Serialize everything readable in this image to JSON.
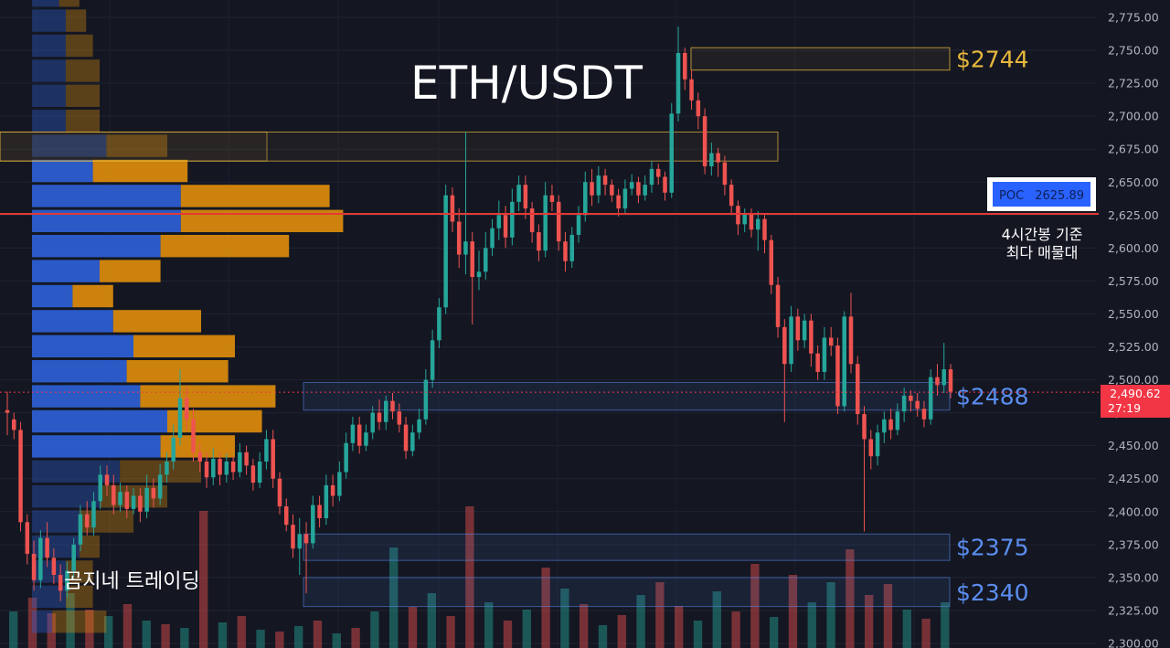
{
  "chart_data": {
    "type": "candlestick",
    "title": "ETH/USDT",
    "watermark": "곰지네 트레이딩",
    "y_ticks": [
      "2,775.00",
      "2,750.00",
      "2,725.00",
      "2,700.00",
      "2,675.00",
      "2,650.00",
      "2,625.00",
      "2,600.00",
      "2,575.00",
      "2,550.00",
      "2,525.00",
      "2,500.00",
      "2,475.00",
      "2,450.00",
      "2,425.00",
      "2,400.00",
      "2,375.00",
      "2,350.00",
      "2,325.00",
      "2,300.00"
    ],
    "ylim": [
      2300,
      2775
    ],
    "current_price": {
      "value": "2,490.62",
      "countdown": "27:19",
      "level": 2490.62
    },
    "poc": {
      "label": "POC",
      "value": "2625.89",
      "level": 2625.89,
      "note_line1": "4시간봉 기준",
      "note_line2": "최다 매물대"
    },
    "zones": [
      {
        "label": "$2744",
        "top": 2752,
        "bottom": 2735,
        "color": "#e8b83c"
      },
      {
        "label": "$2488",
        "top": 2498,
        "bottom": 2477,
        "color": "#5b8def"
      },
      {
        "label": "$2375",
        "top": 2383,
        "bottom": 2363,
        "color": "#5b8def"
      },
      {
        "label": "$2340",
        "top": 2350,
        "bottom": 2328,
        "color": "#5b8def"
      }
    ],
    "upper_box": {
      "top": 2688,
      "bottom": 2666
    },
    "volume_profile": {
      "price_start": 2307,
      "bin_size": 19,
      "buy": [
        3,
        5,
        5,
        7,
        7,
        10,
        13,
        19,
        20,
        16,
        14,
        15,
        12,
        6,
        10,
        19,
        22,
        22,
        9,
        11,
        5,
        5,
        5,
        5,
        5,
        4
      ],
      "sell": [
        8,
        4,
        4,
        3,
        8,
        10,
        12,
        11,
        14,
        20,
        15,
        15,
        13,
        6,
        9,
        19,
        24,
        22,
        14,
        9,
        5,
        5,
        5,
        4,
        3,
        3
      ]
    },
    "colors": {
      "up": "#26a69a",
      "down": "#ef5350",
      "profile_buy": "#2e62d9",
      "profile_sell": "#e08e0b",
      "poc_line": "#e53935"
    },
    "candles": [
      [
        2477,
        2475,
        2491,
        2458
      ],
      [
        2470,
        2462,
        2475,
        2455
      ],
      [
        2462,
        2392,
        2468,
        2385
      ],
      [
        2392,
        2368,
        2398,
        2360
      ],
      [
        2368,
        2348,
        2378,
        2340
      ],
      [
        2348,
        2380,
        2386,
        2342
      ],
      [
        2380,
        2365,
        2392,
        2358
      ],
      [
        2365,
        2352,
        2372,
        2345
      ],
      [
        2352,
        2340,
        2360,
        2332
      ],
      [
        2340,
        2355,
        2362,
        2335
      ],
      [
        2355,
        2375,
        2380,
        2350
      ],
      [
        2375,
        2398,
        2405,
        2370
      ],
      [
        2398,
        2388,
        2408,
        2382
      ],
      [
        2388,
        2408,
        2415,
        2382
      ],
      [
        2408,
        2428,
        2435,
        2402
      ],
      [
        2428,
        2420,
        2435,
        2412
      ],
      [
        2420,
        2405,
        2428,
        2398
      ],
      [
        2405,
        2415,
        2422,
        2400
      ],
      [
        2415,
        2402,
        2420,
        2395
      ],
      [
        2402,
        2412,
        2418,
        2398
      ],
      [
        2412,
        2400,
        2418,
        2392
      ],
      [
        2400,
        2418,
        2428,
        2395
      ],
      [
        2418,
        2410,
        2425,
        2403
      ],
      [
        2410,
        2428,
        2436,
        2405
      ],
      [
        2428,
        2438,
        2445,
        2422
      ],
      [
        2438,
        2456,
        2466,
        2432
      ],
      [
        2456,
        2486,
        2508,
        2450
      ],
      [
        2486,
        2470,
        2495,
        2462
      ],
      [
        2470,
        2445,
        2478,
        2438
      ],
      [
        2445,
        2438,
        2452,
        2430
      ],
      [
        2438,
        2426,
        2445,
        2418
      ],
      [
        2426,
        2440,
        2448,
        2420
      ],
      [
        2440,
        2428,
        2445,
        2420
      ],
      [
        2428,
        2438,
        2444,
        2422
      ],
      [
        2438,
        2430,
        2442,
        2424
      ],
      [
        2430,
        2445,
        2452,
        2426
      ],
      [
        2445,
        2435,
        2450,
        2428
      ],
      [
        2435,
        2422,
        2440,
        2416
      ],
      [
        2422,
        2438,
        2445,
        2418
      ],
      [
        2438,
        2455,
        2462,
        2432
      ],
      [
        2455,
        2425,
        2462,
        2418
      ],
      [
        2425,
        2404,
        2430,
        2398
      ],
      [
        2404,
        2390,
        2410,
        2385
      ],
      [
        2390,
        2372,
        2398,
        2365
      ],
      [
        2372,
        2383,
        2395,
        2352
      ],
      [
        2383,
        2376,
        2392,
        2338
      ],
      [
        2376,
        2405,
        2412,
        2372
      ],
      [
        2405,
        2395,
        2412,
        2388
      ],
      [
        2395,
        2420,
        2428,
        2390
      ],
      [
        2420,
        2412,
        2428,
        2404
      ],
      [
        2412,
        2430,
        2438,
        2408
      ],
      [
        2430,
        2452,
        2460,
        2425
      ],
      [
        2452,
        2466,
        2472,
        2446
      ],
      [
        2466,
        2450,
        2472,
        2444
      ],
      [
        2450,
        2460,
        2466,
        2446
      ],
      [
        2460,
        2475,
        2480,
        2455
      ],
      [
        2475,
        2468,
        2485,
        2462
      ],
      [
        2468,
        2484,
        2488,
        2462
      ],
      [
        2484,
        2476,
        2490,
        2470
      ],
      [
        2476,
        2466,
        2482,
        2460
      ],
      [
        2466,
        2446,
        2472,
        2440
      ],
      [
        2446,
        2460,
        2466,
        2442
      ],
      [
        2460,
        2470,
        2478,
        2455
      ],
      [
        2470,
        2500,
        2508,
        2466
      ],
      [
        2500,
        2530,
        2538,
        2494
      ],
      [
        2530,
        2555,
        2562,
        2524
      ],
      [
        2555,
        2640,
        2648,
        2550
      ],
      [
        2640,
        2620,
        2646,
        2612
      ],
      [
        2620,
        2595,
        2630,
        2585
      ],
      [
        2595,
        2605,
        2688,
        2580
      ],
      [
        2605,
        2578,
        2612,
        2542
      ],
      [
        2578,
        2582,
        2598,
        2568
      ],
      [
        2582,
        2600,
        2612,
        2576
      ],
      [
        2600,
        2615,
        2622,
        2594
      ],
      [
        2615,
        2625,
        2636,
        2606
      ],
      [
        2625,
        2608,
        2632,
        2600
      ],
      [
        2608,
        2635,
        2645,
        2602
      ],
      [
        2635,
        2648,
        2655,
        2628
      ],
      [
        2648,
        2630,
        2655,
        2622
      ],
      [
        2630,
        2612,
        2635,
        2604
      ],
      [
        2612,
        2598,
        2618,
        2590
      ],
      [
        2598,
        2640,
        2650,
        2593
      ],
      [
        2640,
        2635,
        2648,
        2628
      ],
      [
        2635,
        2605,
        2640,
        2598
      ],
      [
        2605,
        2590,
        2612,
        2582
      ],
      [
        2590,
        2610,
        2616,
        2585
      ],
      [
        2610,
        2625,
        2632,
        2604
      ],
      [
        2625,
        2650,
        2658,
        2620
      ],
      [
        2650,
        2640,
        2660,
        2632
      ],
      [
        2640,
        2655,
        2662,
        2634
      ],
      [
        2655,
        2648,
        2660,
        2640
      ],
      [
        2648,
        2640,
        2652,
        2635
      ],
      [
        2640,
        2630,
        2645,
        2624
      ],
      [
        2630,
        2645,
        2652,
        2626
      ],
      [
        2645,
        2650,
        2656,
        2640
      ],
      [
        2650,
        2640,
        2654,
        2634
      ],
      [
        2640,
        2648,
        2655,
        2636
      ],
      [
        2648,
        2660,
        2666,
        2642
      ],
      [
        2660,
        2654,
        2664,
        2648
      ],
      [
        2654,
        2642,
        2658,
        2636
      ],
      [
        2642,
        2702,
        2710,
        2638
      ],
      [
        2702,
        2748,
        2768,
        2696
      ],
      [
        2748,
        2728,
        2752,
        2720
      ],
      [
        2728,
        2712,
        2735,
        2705
      ],
      [
        2712,
        2700,
        2718,
        2690
      ],
      [
        2700,
        2662,
        2706,
        2656
      ],
      [
        2662,
        2672,
        2680,
        2655
      ],
      [
        2672,
        2665,
        2676,
        2654
      ],
      [
        2665,
        2648,
        2670,
        2640
      ],
      [
        2648,
        2632,
        2652,
        2625
      ],
      [
        2632,
        2618,
        2636,
        2610
      ],
      [
        2618,
        2626,
        2630,
        2612
      ],
      [
        2626,
        2614,
        2630,
        2608
      ],
      [
        2614,
        2622,
        2628,
        2598
      ],
      [
        2622,
        2606,
        2625,
        2596
      ],
      [
        2606,
        2572,
        2610,
        2565
      ],
      [
        2572,
        2540,
        2578,
        2532
      ],
      [
        2540,
        2512,
        2546,
        2468
      ],
      [
        2512,
        2548,
        2556,
        2506
      ],
      [
        2548,
        2530,
        2554,
        2522
      ],
      [
        2530,
        2545,
        2550,
        2524
      ],
      [
        2545,
        2520,
        2550,
        2510
      ],
      [
        2520,
        2506,
        2526,
        2500
      ],
      [
        2506,
        2532,
        2540,
        2500
      ],
      [
        2532,
        2526,
        2540,
        2518
      ],
      [
        2526,
        2480,
        2532,
        2474
      ],
      [
        2480,
        2548,
        2552,
        2476
      ],
      [
        2548,
        2512,
        2566,
        2505
      ],
      [
        2512,
        2474,
        2518,
        2466
      ],
      [
        2474,
        2455,
        2480,
        2385
      ],
      [
        2455,
        2442,
        2462,
        2432
      ],
      [
        2442,
        2460,
        2466,
        2435
      ],
      [
        2460,
        2470,
        2476,
        2452
      ],
      [
        2470,
        2462,
        2478,
        2455
      ],
      [
        2462,
        2476,
        2482,
        2458
      ],
      [
        2476,
        2488,
        2494,
        2468
      ],
      [
        2488,
        2484,
        2492,
        2476
      ],
      [
        2484,
        2478,
        2490,
        2472
      ],
      [
        2478,
        2470,
        2484,
        2464
      ],
      [
        2470,
        2502,
        2508,
        2466
      ],
      [
        2502,
        2496,
        2512,
        2488
      ],
      [
        2496,
        2508,
        2528,
        2490
      ],
      [
        2508,
        2491,
        2512,
        2486
      ]
    ],
    "volume_bars": [
      [
        40,
        "u"
      ],
      [
        55,
        "d"
      ],
      [
        38,
        "d"
      ],
      [
        60,
        "u"
      ],
      [
        42,
        "d"
      ],
      [
        35,
        "u"
      ],
      [
        48,
        "d"
      ],
      [
        30,
        "u"
      ],
      [
        26,
        "d"
      ],
      [
        22,
        "u"
      ],
      [
        150,
        "d"
      ],
      [
        28,
        "u"
      ],
      [
        35,
        "d"
      ],
      [
        20,
        "u"
      ],
      [
        18,
        "d"
      ],
      [
        24,
        "u"
      ],
      [
        30,
        "d"
      ],
      [
        16,
        "u"
      ],
      [
        22,
        "d"
      ],
      [
        40,
        "u"
      ],
      [
        110,
        "u"
      ],
      [
        45,
        "d"
      ],
      [
        60,
        "u"
      ],
      [
        35,
        "d"
      ],
      [
        155,
        "d"
      ],
      [
        50,
        "u"
      ],
      [
        30,
        "d"
      ],
      [
        42,
        "u"
      ],
      [
        88,
        "d"
      ],
      [
        65,
        "u"
      ],
      [
        48,
        "d"
      ],
      [
        25,
        "u"
      ],
      [
        36,
        "d"
      ],
      [
        58,
        "u"
      ],
      [
        72,
        "d"
      ],
      [
        46,
        "d"
      ],
      [
        30,
        "u"
      ],
      [
        62,
        "u"
      ],
      [
        40,
        "d"
      ],
      [
        92,
        "d"
      ],
      [
        34,
        "u"
      ],
      [
        80,
        "d"
      ],
      [
        50,
        "u"
      ],
      [
        72,
        "u"
      ],
      [
        108,
        "d"
      ],
      [
        58,
        "d"
      ],
      [
        70,
        "d"
      ],
      [
        42,
        "u"
      ],
      [
        32,
        "d"
      ],
      [
        50,
        "u"
      ]
    ]
  }
}
